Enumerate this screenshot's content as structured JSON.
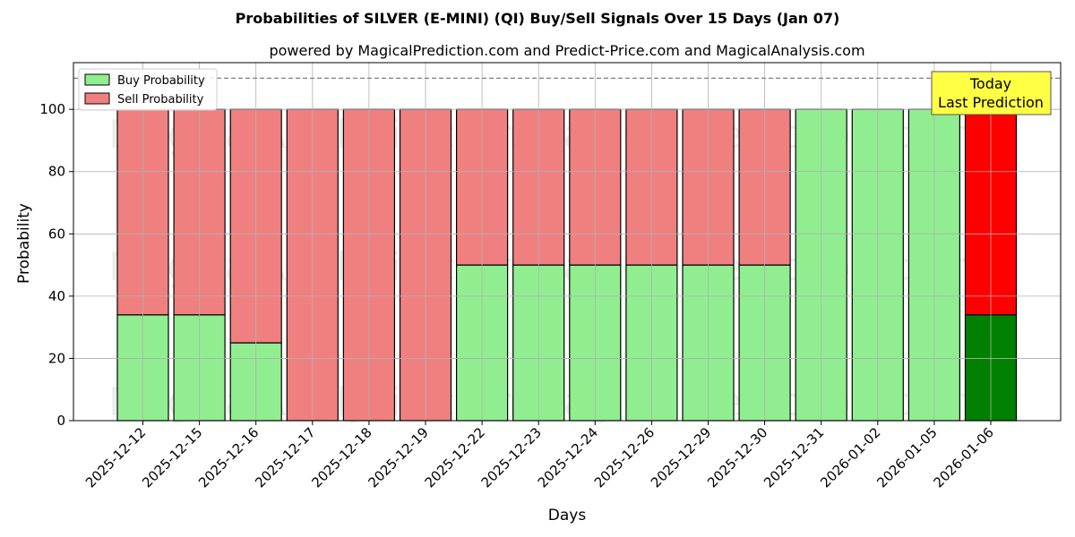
{
  "chart_data": {
    "type": "bar",
    "stacked": true,
    "title": "Probabilities of SILVER (E-MINI) (QI) Buy/Sell Signals Over 15 Days (Jan 07)",
    "subtitle": "powered by MagicalPrediction.com and Predict-Price.com and MagicalAnalysis.com",
    "xlabel": "Days",
    "ylabel": "Probability",
    "ylim": [
      0,
      115
    ],
    "yticks": [
      0,
      20,
      40,
      60,
      80,
      100
    ],
    "reference_line": 110,
    "grid": true,
    "legend_position": "top-left",
    "categories": [
      "2025-12-12",
      "2025-12-15",
      "2025-12-16",
      "2025-12-17",
      "2025-12-18",
      "2025-12-19",
      "2025-12-22",
      "2025-12-23",
      "2025-12-24",
      "2025-12-26",
      "2025-12-29",
      "2025-12-30",
      "2025-12-31",
      "2026-01-02",
      "2026-01-05",
      "2026-01-06"
    ],
    "series": [
      {
        "name": "Buy Probability",
        "color": "#90ee90",
        "highlight_color": "#008000",
        "values": [
          34,
          34,
          25,
          0,
          0,
          0,
          50,
          50,
          50,
          50,
          50,
          50,
          100,
          100,
          100,
          34
        ]
      },
      {
        "name": "Sell Probability",
        "color": "#f08080",
        "highlight_color": "#ff0000",
        "values": [
          66,
          66,
          75,
          100,
          100,
          100,
          50,
          50,
          50,
          50,
          50,
          50,
          0,
          0,
          0,
          66
        ]
      }
    ],
    "highlight_index": 15,
    "annotation": [
      "Today",
      "Last Prediction"
    ],
    "annotation_color": "#ffff44",
    "watermarks": [
      "MagicalAnalysis.com",
      "MagicalPrediction.com"
    ]
  }
}
